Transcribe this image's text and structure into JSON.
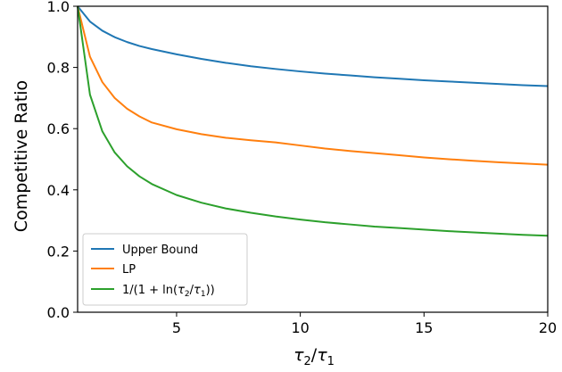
{
  "chart_data": {
    "type": "line",
    "xlabel_parts": {
      "base": "τ",
      "sub1": "2",
      "slash": "/",
      "base2": "τ",
      "sub2": "1"
    },
    "ylabel": "Competitive Ratio",
    "xlim": [
      1,
      20
    ],
    "ylim": [
      0.0,
      1.0
    ],
    "xticks": [
      5,
      10,
      15,
      20
    ],
    "yticks": [
      0.0,
      0.2,
      0.4,
      0.6,
      0.8,
      1.0
    ],
    "ytick_labels": [
      "0.0",
      "0.2",
      "0.4",
      "0.6",
      "0.8",
      "1.0"
    ],
    "xtick_labels": [
      "5",
      "10",
      "15",
      "20"
    ],
    "grid": false,
    "legend_position": "lower-left",
    "x": [
      1,
      1.5,
      2,
      2.5,
      3,
      3.5,
      4,
      5,
      6,
      7,
      8,
      9,
      10,
      11,
      12,
      13,
      14,
      15,
      16,
      17,
      18,
      19,
      20
    ],
    "series": [
      {
        "name": "Upper Bound",
        "color": "#1f77b4",
        "values": [
          1.0,
          0.95,
          0.92,
          0.899,
          0.883,
          0.87,
          0.86,
          0.843,
          0.828,
          0.815,
          0.804,
          0.795,
          0.787,
          0.78,
          0.774,
          0.768,
          0.763,
          0.758,
          0.754,
          0.75,
          0.746,
          0.742,
          0.739
        ]
      },
      {
        "name": "LP",
        "color": "#ff7f0e",
        "values": [
          1.0,
          0.835,
          0.752,
          0.7,
          0.665,
          0.64,
          0.62,
          0.598,
          0.582,
          0.57,
          0.562,
          0.555,
          0.545,
          0.535,
          0.527,
          0.52,
          0.513,
          0.506,
          0.5,
          0.495,
          0.49,
          0.486,
          0.482
        ]
      },
      {
        "name": "1/(1 + ln(τ2/τ1))",
        "label_parts": {
          "pre": "1/(1 + ln(",
          "t": "τ",
          "s2": "2",
          "mid": "/",
          "t2": "τ",
          "s1": "1",
          "post": "))"
        },
        "color": "#2ca02c",
        "values": [
          1.0,
          0.711,
          0.591,
          0.522,
          0.477,
          0.444,
          0.419,
          0.383,
          0.358,
          0.339,
          0.325,
          0.313,
          0.303,
          0.294,
          0.287,
          0.28,
          0.275,
          0.27,
          0.265,
          0.261,
          0.257,
          0.253,
          0.25
        ]
      }
    ]
  }
}
